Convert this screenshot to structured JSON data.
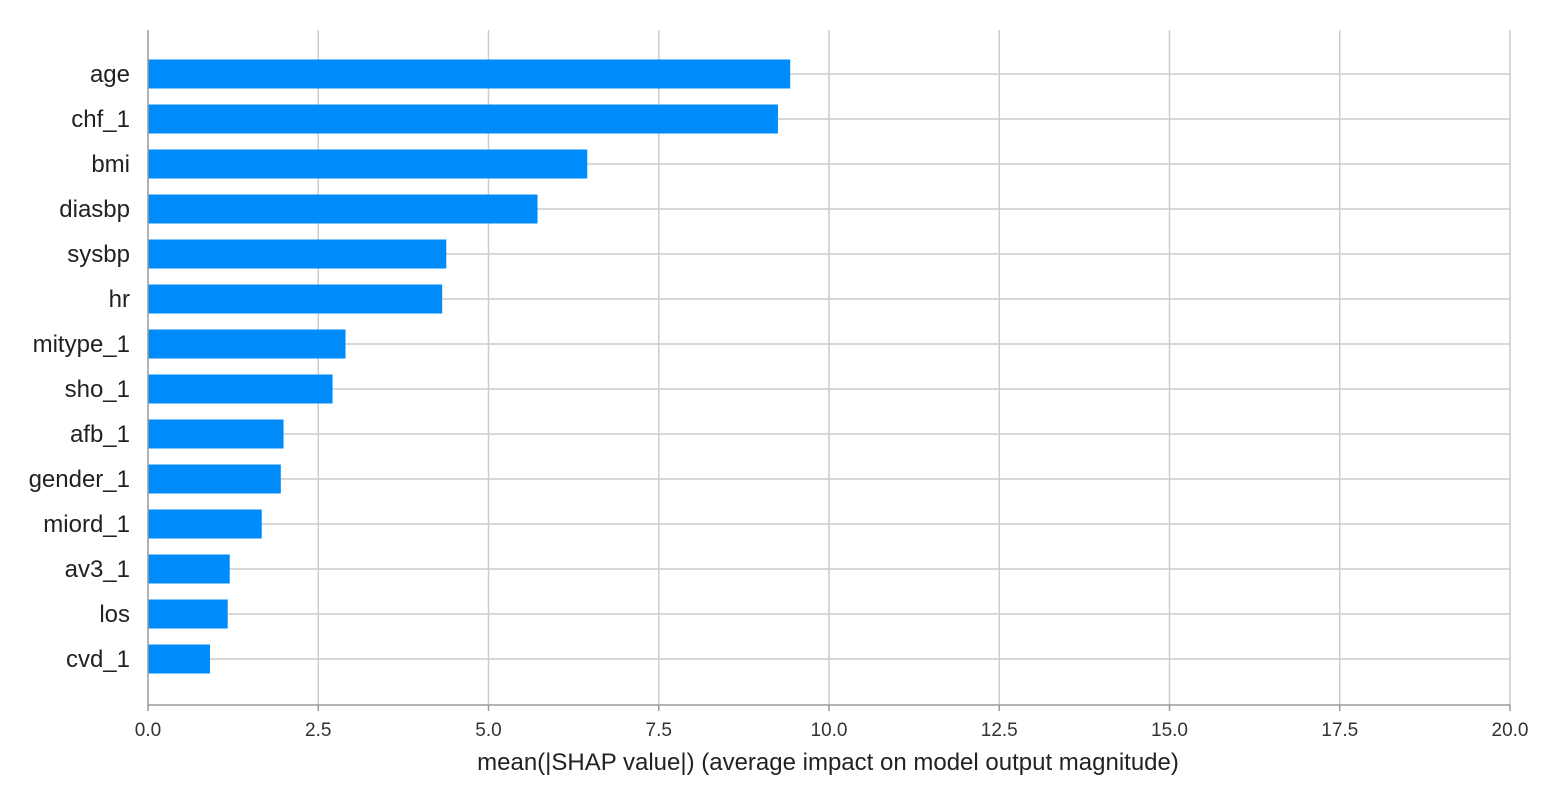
{
  "chart_data": {
    "type": "bar",
    "orientation": "horizontal",
    "categories": [
      "age",
      "chf_1",
      "bmi",
      "diasbp",
      "sysbp",
      "hr",
      "mitype_1",
      "sho_1",
      "afb_1",
      "gender_1",
      "miord_1",
      "av3_1",
      "los",
      "cvd_1"
    ],
    "values": [
      9.43,
      9.25,
      6.45,
      5.72,
      4.38,
      4.32,
      2.9,
      2.71,
      1.99,
      1.95,
      1.67,
      1.2,
      1.17,
      0.91
    ],
    "xlabel": "mean(|SHAP value|) (average impact on model output magnitude)",
    "ylabel": "",
    "xlim": [
      0,
      20
    ],
    "xticks": [
      "0.0",
      "2.5",
      "5.0",
      "7.5",
      "10.0",
      "12.5",
      "15.0",
      "17.5",
      "20.0"
    ],
    "grid": true,
    "colors": {
      "bar": "#008bfb",
      "grid": "#cccccc"
    }
  }
}
